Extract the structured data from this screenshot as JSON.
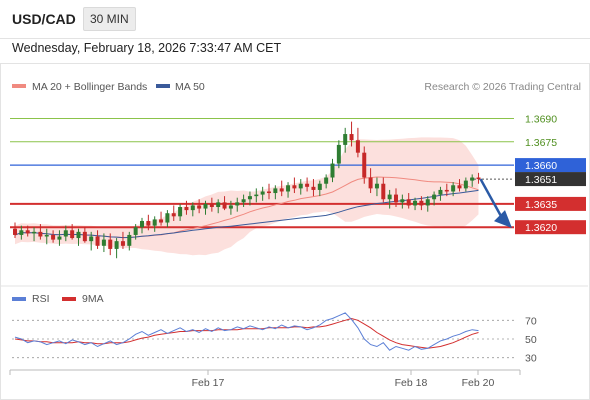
{
  "header": {
    "symbol": "USD/CAD",
    "timeframe": "30 MIN"
  },
  "timestamp": "Wednesday, February 18, 2026 7:33:47 AM CET",
  "legend": {
    "ma20": "MA 20 + Bollinger Bands",
    "ma50": "MA 50",
    "ma20_color": "#f08a80",
    "ma50_color": "#3a5a9a"
  },
  "copyright": "Research © 2026 Trading Central",
  "colors": {
    "bull": "#2e7d32",
    "bear": "#c62828",
    "resistance": "#8bc34a",
    "pivot": "#2f62d8",
    "support": "#d32f2f",
    "forecast_arrow": "#2a5aa6"
  },
  "chart_data": [
    {
      "type": "candlestick",
      "ylim": [
        1.3595,
        1.37
      ],
      "x_ticks": [
        "Feb 17",
        "Feb 18",
        "Feb 20"
      ],
      "levels": [
        {
          "name": "resistance-2",
          "value": "1.3690"
        },
        {
          "name": "resistance-1",
          "value": "1.3675"
        },
        {
          "name": "pivot",
          "value": "1.3660"
        },
        {
          "name": "last-price",
          "value": "1.3651"
        },
        {
          "name": "support-1",
          "value": "1.3635"
        },
        {
          "name": "support-2",
          "value": "1.3620"
        }
      ],
      "last_price": 1.3651,
      "candles": [
        [
          1.3619,
          1.3623,
          1.3613,
          1.3615
        ],
        [
          1.3615,
          1.3621,
          1.3612,
          1.3618
        ],
        [
          1.3618,
          1.3621,
          1.3614,
          1.3616
        ],
        [
          1.3616,
          1.362,
          1.3611,
          1.3617
        ],
        [
          1.3617,
          1.3622,
          1.3612,
          1.3614
        ],
        [
          1.3614,
          1.3619,
          1.3609,
          1.3615
        ],
        [
          1.3615,
          1.3618,
          1.361,
          1.3612
        ],
        [
          1.3612,
          1.3618,
          1.3608,
          1.3614
        ],
        [
          1.3614,
          1.3621,
          1.3611,
          1.3618
        ],
        [
          1.3618,
          1.3622,
          1.3612,
          1.3613
        ],
        [
          1.3613,
          1.3619,
          1.3608,
          1.3617
        ],
        [
          1.3617,
          1.362,
          1.361,
          1.3611
        ],
        [
          1.3611,
          1.3617,
          1.3605,
          1.3614
        ],
        [
          1.3614,
          1.3618,
          1.3606,
          1.3608
        ],
        [
          1.3608,
          1.3616,
          1.3604,
          1.3612
        ],
        [
          1.3612,
          1.3616,
          1.3602,
          1.3606
        ],
        [
          1.3606,
          1.3613,
          1.36,
          1.3611
        ],
        [
          1.3611,
          1.3617,
          1.3606,
          1.3608
        ],
        [
          1.3608,
          1.3617,
          1.3605,
          1.3615
        ],
        [
          1.3615,
          1.3622,
          1.3612,
          1.362
        ],
        [
          1.362,
          1.3626,
          1.3616,
          1.3624
        ],
        [
          1.3624,
          1.3628,
          1.3618,
          1.3621
        ],
        [
          1.3621,
          1.3627,
          1.3617,
          1.3625
        ],
        [
          1.3625,
          1.363,
          1.3621,
          1.3623
        ],
        [
          1.3623,
          1.3631,
          1.362,
          1.3629
        ],
        [
          1.3629,
          1.3634,
          1.3624,
          1.3627
        ],
        [
          1.3627,
          1.3635,
          1.3624,
          1.3633
        ],
        [
          1.3633,
          1.3637,
          1.3628,
          1.3631
        ],
        [
          1.3631,
          1.3636,
          1.3627,
          1.3634
        ],
        [
          1.3634,
          1.3638,
          1.3629,
          1.3632
        ],
        [
          1.3632,
          1.3637,
          1.3628,
          1.3635
        ],
        [
          1.3635,
          1.3639,
          1.363,
          1.3633
        ],
        [
          1.3633,
          1.3638,
          1.3629,
          1.3636
        ],
        [
          1.3636,
          1.364,
          1.3631,
          1.3632
        ],
        [
          1.3632,
          1.3637,
          1.3628,
          1.3634
        ],
        [
          1.3634,
          1.3639,
          1.363,
          1.3636
        ],
        [
          1.3636,
          1.3641,
          1.3633,
          1.3638
        ],
        [
          1.3638,
          1.3643,
          1.3634,
          1.364
        ],
        [
          1.364,
          1.3645,
          1.3636,
          1.3641
        ],
        [
          1.3641,
          1.3646,
          1.3637,
          1.3643
        ],
        [
          1.3643,
          1.3648,
          1.3638,
          1.3642
        ],
        [
          1.3642,
          1.3647,
          1.3638,
          1.3645
        ],
        [
          1.3645,
          1.365,
          1.364,
          1.3643
        ],
        [
          1.3643,
          1.3649,
          1.3639,
          1.3647
        ],
        [
          1.3647,
          1.3652,
          1.3642,
          1.3645
        ],
        [
          1.3645,
          1.3651,
          1.3641,
          1.3648
        ],
        [
          1.3648,
          1.3652,
          1.3643,
          1.3646
        ],
        [
          1.3646,
          1.3651,
          1.364,
          1.3644
        ],
        [
          1.3644,
          1.365,
          1.364,
          1.3648
        ],
        [
          1.3648,
          1.3654,
          1.3645,
          1.3652
        ],
        [
          1.3652,
          1.3664,
          1.3649,
          1.3661
        ],
        [
          1.3661,
          1.3676,
          1.3658,
          1.3673
        ],
        [
          1.3673,
          1.3684,
          1.3668,
          1.368
        ],
        [
          1.368,
          1.3688,
          1.3672,
          1.3676
        ],
        [
          1.3676,
          1.3684,
          1.3665,
          1.3668
        ],
        [
          1.3668,
          1.3672,
          1.3648,
          1.3652
        ],
        [
          1.3652,
          1.3658,
          1.3642,
          1.3645
        ],
        [
          1.3645,
          1.3652,
          1.364,
          1.3648
        ],
        [
          1.3648,
          1.3652,
          1.3636,
          1.3638
        ],
        [
          1.3638,
          1.3644,
          1.3632,
          1.3641
        ],
        [
          1.3641,
          1.3645,
          1.3633,
          1.3636
        ],
        [
          1.3636,
          1.3641,
          1.3632,
          1.3638
        ],
        [
          1.3638,
          1.3642,
          1.3632,
          1.3634
        ],
        [
          1.3634,
          1.3639,
          1.3631,
          1.3637
        ],
        [
          1.3637,
          1.364,
          1.3631,
          1.3634
        ],
        [
          1.3634,
          1.364,
          1.363,
          1.3638
        ],
        [
          1.3638,
          1.3643,
          1.3634,
          1.3641
        ],
        [
          1.3641,
          1.3646,
          1.3637,
          1.3644
        ],
        [
          1.3644,
          1.3648,
          1.364,
          1.3643
        ],
        [
          1.3643,
          1.3649,
          1.364,
          1.3647
        ],
        [
          1.3647,
          1.3651,
          1.3643,
          1.3645
        ],
        [
          1.3645,
          1.3652,
          1.3643,
          1.365
        ],
        [
          1.365,
          1.3654,
          1.3646,
          1.3652
        ],
        [
          1.3652,
          1.3655,
          1.3648,
          1.3651
        ]
      ]
    },
    {
      "type": "line",
      "legend": [
        {
          "name": "RSI",
          "color": "#5b7fd6"
        },
        {
          "name": "9MA",
          "color": "#d32f2f"
        }
      ],
      "ylim": [
        20,
        80
      ],
      "y_ticks": [
        "70",
        "50",
        "30"
      ],
      "rsi": [
        52,
        50,
        46,
        48,
        47,
        44,
        46,
        48,
        45,
        49,
        47,
        44,
        46,
        42,
        45,
        48,
        44,
        46,
        50,
        55,
        58,
        54,
        57,
        60,
        56,
        59,
        62,
        58,
        60,
        57,
        61,
        58,
        62,
        59,
        60,
        63,
        61,
        64,
        62,
        60,
        63,
        61,
        65,
        62,
        64,
        63,
        60,
        62,
        65,
        70,
        72,
        75,
        78,
        71,
        62,
        50,
        44,
        42,
        46,
        38,
        42,
        40,
        38,
        42,
        39,
        40,
        44,
        48,
        50,
        53,
        55,
        58,
        60,
        59
      ],
      "ma9": [
        50,
        49,
        48,
        48,
        47,
        47,
        46,
        46,
        46,
        46,
        47,
        46,
        46,
        45,
        45,
        46,
        46,
        46,
        47,
        49,
        51,
        52,
        54,
        55,
        56,
        57,
        58,
        58,
        59,
        59,
        59,
        59,
        60,
        60,
        60,
        60,
        61,
        61,
        61,
        61,
        62,
        62,
        62,
        62,
        63,
        63,
        62,
        63,
        63,
        64,
        66,
        68,
        70,
        72,
        70,
        66,
        62,
        57,
        53,
        49,
        46,
        44,
        43,
        42,
        41,
        40,
        41,
        42,
        44,
        46,
        49,
        52,
        55,
        57
      ]
    }
  ]
}
